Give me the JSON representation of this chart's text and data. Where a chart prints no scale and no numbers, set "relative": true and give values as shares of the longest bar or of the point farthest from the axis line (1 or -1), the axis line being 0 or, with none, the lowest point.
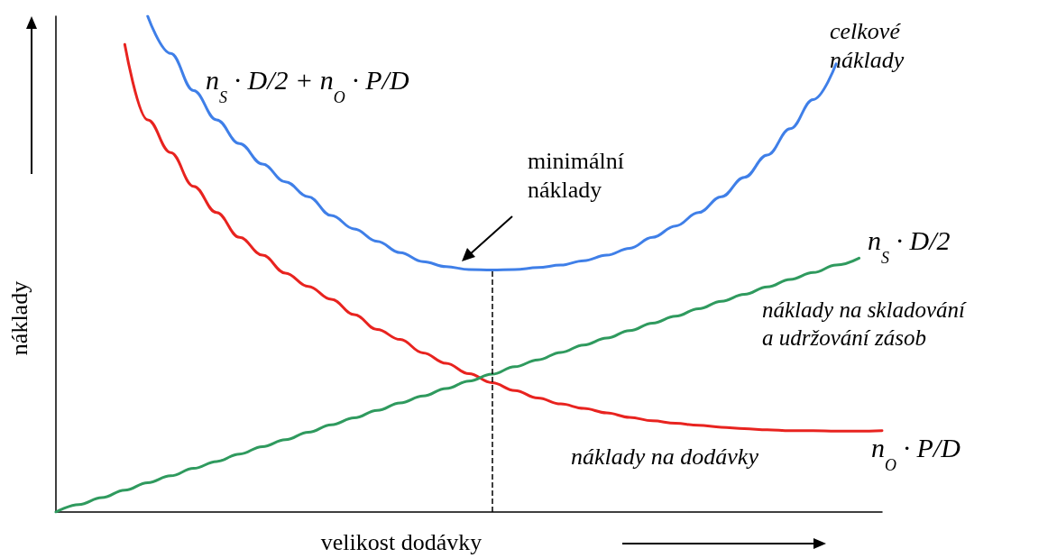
{
  "chart_data": {
    "type": "line",
    "relative": true,
    "xlabel": "velikost dodávky",
    "ylabel": "náklady",
    "categories": [
      null,
      null,
      null,
      null,
      null,
      null,
      null,
      null,
      null,
      null,
      null,
      null,
      null,
      null,
      null,
      null,
      null,
      null,
      null,
      null,
      null,
      null,
      null,
      null,
      null,
      null,
      null,
      null,
      null,
      null,
      null,
      null,
      null,
      null,
      null,
      null,
      null
    ],
    "series": [
      {
        "color": "#3f7fe8",
        "values": [
          null,
          null,
          null,
          null,
          1.0,
          0.925,
          0.85,
          0.791,
          0.743,
          0.702,
          0.666,
          0.636,
          0.598,
          0.571,
          0.546,
          0.523,
          0.505,
          0.495,
          0.489,
          0.488,
          0.489,
          0.493,
          0.498,
          0.507,
          0.518,
          0.532,
          0.554,
          0.577,
          0.604,
          0.636,
          0.675,
          0.72,
          0.773,
          0.832,
          0.904,
          null,
          null
        ]
      },
      {
        "color": "#e8231f",
        "values": [
          null,
          null,
          null,
          0.943,
          0.791,
          0.725,
          0.657,
          0.604,
          0.554,
          0.518,
          0.482,
          0.455,
          0.429,
          0.398,
          0.368,
          0.348,
          0.321,
          0.3,
          0.279,
          0.261,
          0.245,
          0.23,
          0.218,
          0.209,
          0.2,
          0.191,
          0.184,
          0.179,
          0.175,
          0.171,
          0.168,
          0.166,
          0.164,
          0.164,
          0.163,
          0.163,
          0.164
        ]
      },
      {
        "color": "#2f9a5e",
        "values": [
          0,
          0.015,
          0.029,
          0.044,
          0.059,
          0.073,
          0.088,
          0.102,
          0.117,
          0.132,
          0.146,
          0.161,
          0.176,
          0.19,
          0.205,
          0.22,
          0.234,
          0.249,
          0.264,
          0.278,
          0.293,
          0.307,
          0.322,
          0.337,
          0.351,
          0.366,
          0.381,
          0.395,
          0.41,
          0.425,
          0.439,
          0.454,
          0.469,
          0.483,
          0.498,
          0.512,
          null
        ]
      }
    ],
    "marker": "none",
    "line_style": "solid",
    "grid": false,
    "annotations": [
      "n$_{S}$ · D/2 + n$_{O}$ · P/D",
      "celkové\nnáklady",
      "minimální\nnáklady",
      "n$_{S}$ · D/2",
      "náklady na skladování\na udržování zásob",
      "n$_{O}$ · P/D",
      "náklady na dodávky"
    ]
  }
}
